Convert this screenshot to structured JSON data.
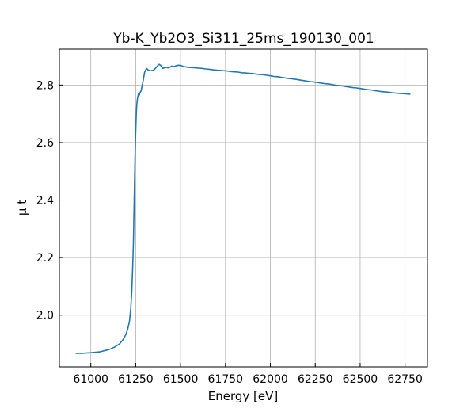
{
  "chart_data": {
    "type": "line",
    "title": "Yb-K_Yb2O3_Si311_25ms_190130_001",
    "xlabel": "Energy [eV]",
    "ylabel": "μ t",
    "xlim": [
      60825,
      62875
    ],
    "ylim": [
      1.82,
      2.925
    ],
    "xticks": [
      61000,
      61250,
      61500,
      61750,
      62000,
      62250,
      62500,
      62750
    ],
    "yticks": [
      2.0,
      2.2,
      2.4,
      2.6,
      2.8
    ],
    "yticks_labels": [
      "2.0",
      "2.2",
      "2.4",
      "2.6",
      "2.8"
    ],
    "grid": true,
    "series": [
      {
        "color": "#1f77b4",
        "x": [
          60915,
          60950,
          61000,
          61050,
          61100,
          61130,
          61160,
          61180,
          61195,
          61205,
          61215,
          61222,
          61228,
          61233,
          61237,
          61240,
          61243,
          61246,
          61249,
          61252,
          61255,
          61258,
          61262,
          61266,
          61270,
          61275,
          61280,
          61290,
          61300,
          61310,
          61320,
          61330,
          61340,
          61350,
          61360,
          61370,
          61380,
          61390,
          61400,
          61410,
          61420,
          61430,
          61440,
          61450,
          61460,
          61470,
          61480,
          61490,
          61500,
          61510,
          61520,
          61540,
          61560,
          61580,
          61600,
          61620,
          61640,
          61660,
          61680,
          61700,
          61720,
          61740,
          61760,
          61780,
          61800,
          61820,
          61840,
          61860,
          61880,
          61900,
          61920,
          61940,
          61960,
          61980,
          62000,
          62020,
          62040,
          62060,
          62080,
          62100,
          62120,
          62140,
          62160,
          62180,
          62200,
          62220,
          62240,
          62260,
          62280,
          62300,
          62320,
          62340,
          62360,
          62380,
          62400,
          62420,
          62440,
          62460,
          62480,
          62500,
          62520,
          62540,
          62560,
          62580,
          62600,
          62620,
          62640,
          62660,
          62680,
          62700,
          62720,
          62740,
          62760,
          62780
        ],
        "y": [
          1.867,
          1.867,
          1.869,
          1.872,
          1.88,
          1.888,
          1.9,
          1.915,
          1.932,
          1.95,
          1.978,
          2.02,
          2.08,
          2.16,
          2.25,
          2.34,
          2.44,
          2.54,
          2.62,
          2.68,
          2.72,
          2.745,
          2.76,
          2.77,
          2.765,
          2.775,
          2.78,
          2.81,
          2.845,
          2.858,
          2.852,
          2.85,
          2.85,
          2.852,
          2.858,
          2.866,
          2.872,
          2.868,
          2.858,
          2.86,
          2.862,
          2.86,
          2.862,
          2.866,
          2.864,
          2.866,
          2.868,
          2.869,
          2.868,
          2.866,
          2.864,
          2.862,
          2.861,
          2.86,
          2.859,
          2.858,
          2.856,
          2.855,
          2.853,
          2.852,
          2.851,
          2.85,
          2.849,
          2.847,
          2.846,
          2.845,
          2.843,
          2.842,
          2.841,
          2.84,
          2.838,
          2.837,
          2.836,
          2.834,
          2.832,
          2.83,
          2.829,
          2.827,
          2.825,
          2.823,
          2.822,
          2.82,
          2.818,
          2.816,
          2.814,
          2.812,
          2.811,
          2.809,
          2.807,
          2.805,
          2.804,
          2.802,
          2.8,
          2.798,
          2.797,
          2.795,
          2.793,
          2.791,
          2.79,
          2.788,
          2.786,
          2.784,
          2.783,
          2.781,
          2.779,
          2.777,
          2.776,
          2.775,
          2.773,
          2.772,
          2.771,
          2.77,
          2.769,
          2.768
        ]
      }
    ]
  }
}
